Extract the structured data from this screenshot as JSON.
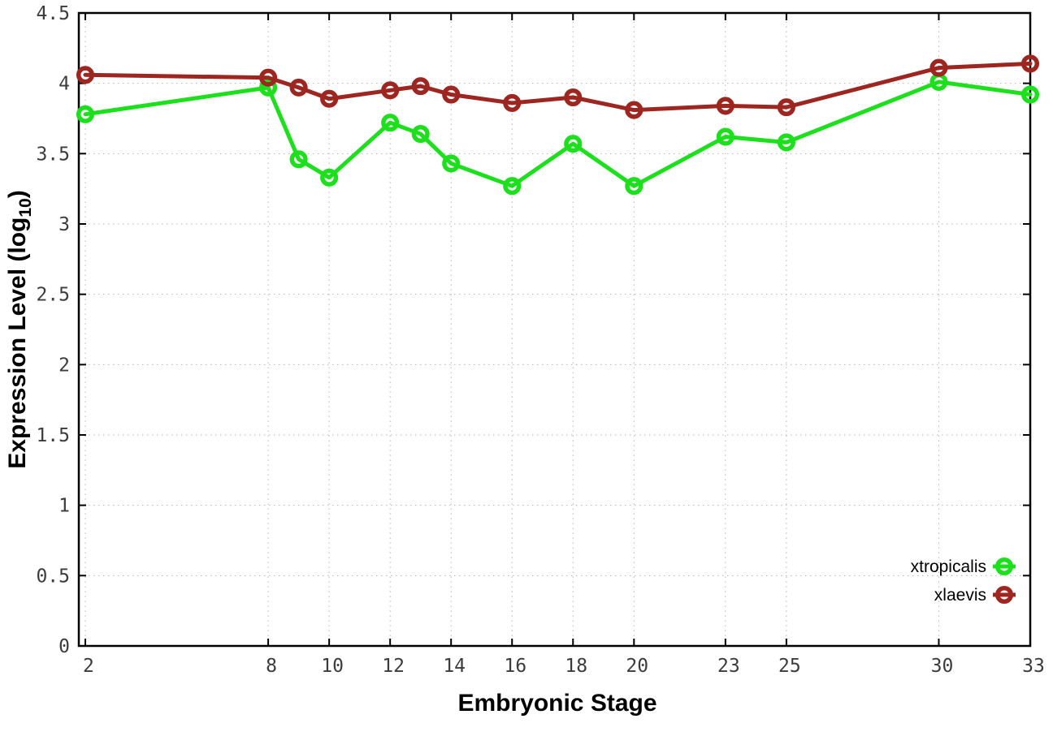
{
  "chart_data": {
    "type": "line",
    "title": "",
    "xlabel": "Embryonic Stage",
    "ylabel": "Expression Level (log10)",
    "ylabel_parts": {
      "pre": "Expression Level (log",
      "sub": "10",
      "post": ")"
    },
    "x": [
      2,
      8,
      9,
      10,
      12,
      13,
      14,
      16,
      18,
      20,
      23,
      25,
      30,
      33
    ],
    "series": [
      {
        "name": "xtropicalis",
        "color": "#1ce01c",
        "values": [
          3.78,
          3.97,
          3.46,
          3.33,
          3.72,
          3.64,
          3.43,
          3.27,
          3.57,
          3.27,
          3.62,
          3.58,
          4.01,
          3.92
        ]
      },
      {
        "name": "xlaevis",
        "color": "#9e2620",
        "values": [
          4.06,
          4.04,
          3.97,
          3.89,
          3.95,
          3.98,
          3.92,
          3.86,
          3.9,
          3.81,
          3.84,
          3.83,
          4.11,
          4.14
        ]
      }
    ],
    "x_ticks": [
      2,
      8,
      10,
      12,
      14,
      16,
      18,
      20,
      23,
      25,
      30,
      33
    ],
    "x_tick_labels": [
      "2",
      "8",
      "10",
      "12",
      "14",
      "16",
      "18",
      "20",
      "23",
      "25",
      "30",
      "33"
    ],
    "y_ticks": [
      0,
      0.5,
      1,
      1.5,
      2,
      2.5,
      3,
      3.5,
      4,
      4.5
    ],
    "y_tick_labels": [
      "0",
      "0.5",
      "1",
      "1.5",
      "2",
      "2.5",
      "3",
      "3.5",
      "4",
      "4.5"
    ],
    "xlim": [
      1.787,
      33.0
    ],
    "ylim": [
      0,
      4.5
    ],
    "grid": true,
    "legend_position": "inside-bottom-right",
    "marker": "open-circle"
  },
  "colors": {
    "frame": "#000000",
    "grid": "#b5b5b5",
    "tick": "#000000",
    "tick_label": "#3c3c3c",
    "background": "#ffffff"
  }
}
